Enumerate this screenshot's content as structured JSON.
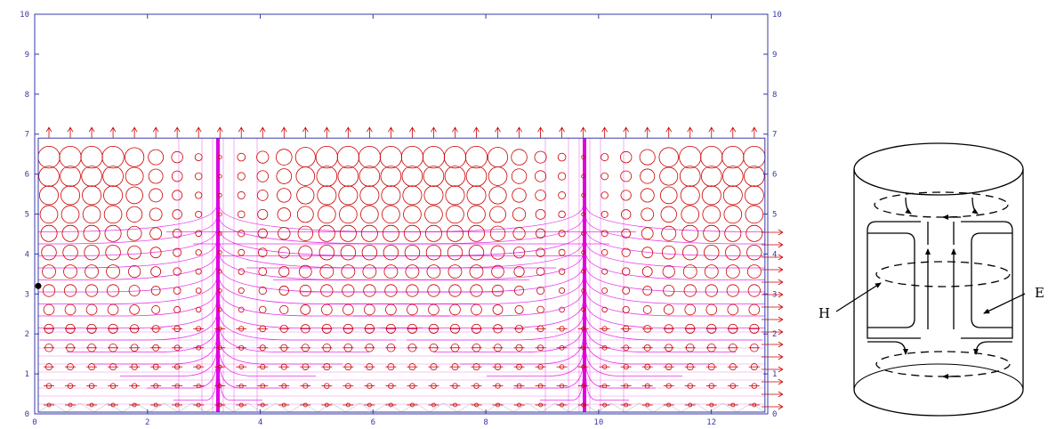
{
  "field_plot": {
    "x_ticks": [
      "0",
      "2",
      "4",
      "6",
      "8",
      "10",
      "12"
    ],
    "y_ticks": [
      "0",
      "1",
      "2",
      "3",
      "4",
      "5",
      "6",
      "7",
      "8",
      "9",
      "10"
    ],
    "xlim": [
      0,
      13
    ],
    "ylim": [
      0,
      10
    ],
    "domain_x": [
      0,
      12.95
    ],
    "domain_y": [
      0,
      6.9
    ],
    "sources_x": [
      3.25,
      9.75
    ],
    "colors": {
      "axis": "#3838a8",
      "flux_lines": "#e000e0",
      "vectors": "#cc0000",
      "mesh": "#c8c8c8"
    }
  },
  "cylinder_diagram": {
    "label_h": "H",
    "label_e": "E"
  }
}
